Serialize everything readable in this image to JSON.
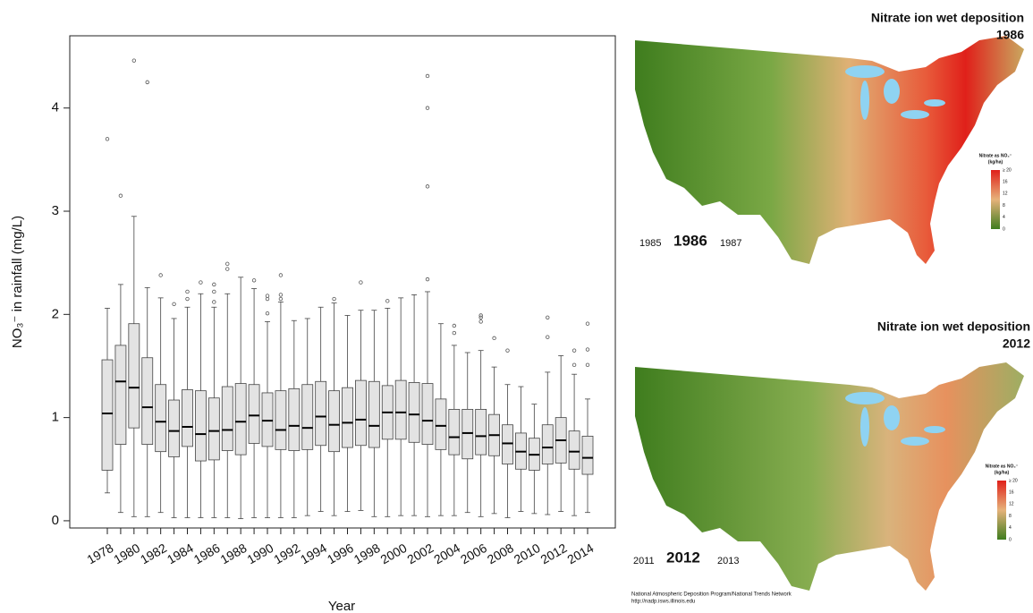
{
  "chart_data": {
    "type": "box",
    "x_label": "Year",
    "y_label": "NO₃⁻ in rainfall (mg/L)",
    "categories": [
      "1978",
      null,
      "1980",
      null,
      "1982",
      null,
      "1984",
      null,
      "1986",
      null,
      "1988",
      null,
      "1990",
      null,
      "1992",
      null,
      "1994",
      null,
      "1996",
      null,
      "1998",
      null,
      "2000",
      null,
      "2002",
      null,
      "2004",
      null,
      "2006",
      null,
      "2008",
      null,
      "2010",
      null,
      "2012",
      null,
      "2014"
    ],
    "boxes": [
      {
        "low": 0.27,
        "q1": 0.49,
        "median": 1.04,
        "q3": 1.56,
        "high": 2.06,
        "outliers": [
          3.7
        ]
      },
      {
        "low": 0.08,
        "q1": 0.74,
        "median": 1.35,
        "q3": 1.7,
        "high": 2.29,
        "outliers": [
          3.15
        ]
      },
      {
        "low": 0.04,
        "q1": 0.9,
        "median": 1.29,
        "q3": 1.91,
        "high": 2.95,
        "outliers": [
          4.46
        ]
      },
      {
        "low": 0.04,
        "q1": 0.74,
        "median": 1.1,
        "q3": 1.58,
        "high": 2.26,
        "outliers": [
          4.25
        ]
      },
      {
        "low": 0.08,
        "q1": 0.67,
        "median": 0.96,
        "q3": 1.32,
        "high": 2.16,
        "outliers": [
          2.38
        ]
      },
      {
        "low": 0.03,
        "q1": 0.62,
        "median": 0.87,
        "q3": 1.17,
        "high": 1.96,
        "outliers": [
          2.1
        ]
      },
      {
        "low": 0.03,
        "q1": 0.72,
        "median": 0.91,
        "q3": 1.27,
        "high": 2.07,
        "outliers": [
          2.15,
          2.22
        ]
      },
      {
        "low": 0.03,
        "q1": 0.58,
        "median": 0.84,
        "q3": 1.26,
        "high": 2.2,
        "outliers": [
          2.31
        ]
      },
      {
        "low": 0.03,
        "q1": 0.59,
        "median": 0.87,
        "q3": 1.19,
        "high": 2.07,
        "outliers": [
          2.12,
          2.22,
          2.29
        ]
      },
      {
        "low": 0.03,
        "q1": 0.68,
        "median": 0.88,
        "q3": 1.3,
        "high": 2.2,
        "outliers": [
          2.44,
          2.49
        ]
      },
      {
        "low": 0.02,
        "q1": 0.64,
        "median": 0.96,
        "q3": 1.33,
        "high": 2.36,
        "outliers": []
      },
      {
        "low": 0.03,
        "q1": 0.75,
        "median": 1.02,
        "q3": 1.32,
        "high": 2.25,
        "outliers": [
          2.33
        ]
      },
      {
        "low": 0.03,
        "q1": 0.72,
        "median": 0.97,
        "q3": 1.24,
        "high": 1.93,
        "outliers": [
          2.01,
          2.15,
          2.18
        ]
      },
      {
        "low": 0.03,
        "q1": 0.69,
        "median": 0.88,
        "q3": 1.26,
        "high": 2.12,
        "outliers": [
          2.15,
          2.19,
          2.38
        ]
      },
      {
        "low": 0.03,
        "q1": 0.68,
        "median": 0.92,
        "q3": 1.28,
        "high": 1.94,
        "outliers": []
      },
      {
        "low": 0.05,
        "q1": 0.69,
        "median": 0.9,
        "q3": 1.32,
        "high": 1.96,
        "outliers": []
      },
      {
        "low": 0.09,
        "q1": 0.73,
        "median": 1.01,
        "q3": 1.35,
        "high": 2.07,
        "outliers": []
      },
      {
        "low": 0.05,
        "q1": 0.67,
        "median": 0.93,
        "q3": 1.26,
        "high": 2.11,
        "outliers": [
          2.15
        ]
      },
      {
        "low": 0.09,
        "q1": 0.71,
        "median": 0.95,
        "q3": 1.29,
        "high": 1.99,
        "outliers": []
      },
      {
        "low": 0.1,
        "q1": 0.73,
        "median": 0.98,
        "q3": 1.36,
        "high": 2.04,
        "outliers": [
          2.31
        ]
      },
      {
        "low": 0.04,
        "q1": 0.71,
        "median": 0.92,
        "q3": 1.35,
        "high": 2.04,
        "outliers": []
      },
      {
        "low": 0.04,
        "q1": 0.79,
        "median": 1.05,
        "q3": 1.31,
        "high": 2.06,
        "outliers": [
          2.13
        ]
      },
      {
        "low": 0.05,
        "q1": 0.79,
        "median": 1.05,
        "q3": 1.36,
        "high": 2.16,
        "outliers": []
      },
      {
        "low": 0.05,
        "q1": 0.76,
        "median": 1.03,
        "q3": 1.34,
        "high": 2.19,
        "outliers": []
      },
      {
        "low": 0.04,
        "q1": 0.74,
        "median": 0.97,
        "q3": 1.33,
        "high": 2.22,
        "outliers": [
          2.34,
          3.24,
          4.0,
          4.31
        ]
      },
      {
        "low": 0.05,
        "q1": 0.69,
        "median": 0.92,
        "q3": 1.18,
        "high": 1.91,
        "outliers": []
      },
      {
        "low": 0.05,
        "q1": 0.64,
        "median": 0.81,
        "q3": 1.08,
        "high": 1.7,
        "outliers": [
          1.82,
          1.89
        ]
      },
      {
        "low": 0.08,
        "q1": 0.6,
        "median": 0.85,
        "q3": 1.08,
        "high": 1.63,
        "outliers": []
      },
      {
        "low": 0.04,
        "q1": 0.64,
        "median": 0.82,
        "q3": 1.08,
        "high": 1.65,
        "outliers": [
          1.93,
          1.97,
          1.99
        ]
      },
      {
        "low": 0.07,
        "q1": 0.63,
        "median": 0.83,
        "q3": 1.03,
        "high": 1.49,
        "outliers": [
          1.77
        ]
      },
      {
        "low": 0.03,
        "q1": 0.55,
        "median": 0.75,
        "q3": 0.93,
        "high": 1.32,
        "outliers": [
          1.65
        ]
      },
      {
        "low": 0.09,
        "q1": 0.5,
        "median": 0.67,
        "q3": 0.85,
        "high": 1.3,
        "outliers": []
      },
      {
        "low": 0.07,
        "q1": 0.49,
        "median": 0.64,
        "q3": 0.8,
        "high": 1.13,
        "outliers": []
      },
      {
        "low": 0.06,
        "q1": 0.55,
        "median": 0.71,
        "q3": 0.93,
        "high": 1.44,
        "outliers": [
          1.78,
          1.97
        ]
      },
      {
        "low": 0.09,
        "q1": 0.56,
        "median": 0.78,
        "q3": 1.0,
        "high": 1.6,
        "outliers": []
      },
      {
        "low": 0.05,
        "q1": 0.5,
        "median": 0.67,
        "q3": 0.87,
        "high": 1.42,
        "outliers": [
          1.51,
          1.65
        ]
      },
      {
        "low": 0.08,
        "q1": 0.45,
        "median": 0.61,
        "q3": 0.82,
        "high": 1.18,
        "outliers": [
          1.51,
          1.66,
          1.91
        ]
      }
    ],
    "color": "#e3e3e3",
    "ylim": [
      -0.07,
      4.7
    ],
    "yticks": [
      0,
      1,
      2,
      3,
      4
    ]
  },
  "maps": [
    {
      "title": "Nitrate ion wet deposition",
      "year_title": "1986",
      "prev": "1985",
      "year": "1986",
      "next": "1987",
      "legend_title": "Nitrate as NO₃⁻",
      "legend_unit": "(kg/ha)",
      "legend_labels": [
        "≥ 20",
        "16",
        "12",
        "8",
        "4",
        "0"
      ]
    },
    {
      "title": "Nitrate ion wet deposition",
      "year_title": "2012",
      "prev": "2011",
      "year": "2012",
      "next": "2013",
      "legend_title": "Nitrate as NO₃⁻",
      "legend_unit": "(kg/ha)",
      "legend_labels": [
        "≥ 20",
        "16",
        "12",
        "8",
        "4",
        "0"
      ]
    }
  ],
  "source": [
    "National Atmospheric Deposition Program/National Trends Network",
    "http://nadp.isws.illinois.edu"
  ]
}
